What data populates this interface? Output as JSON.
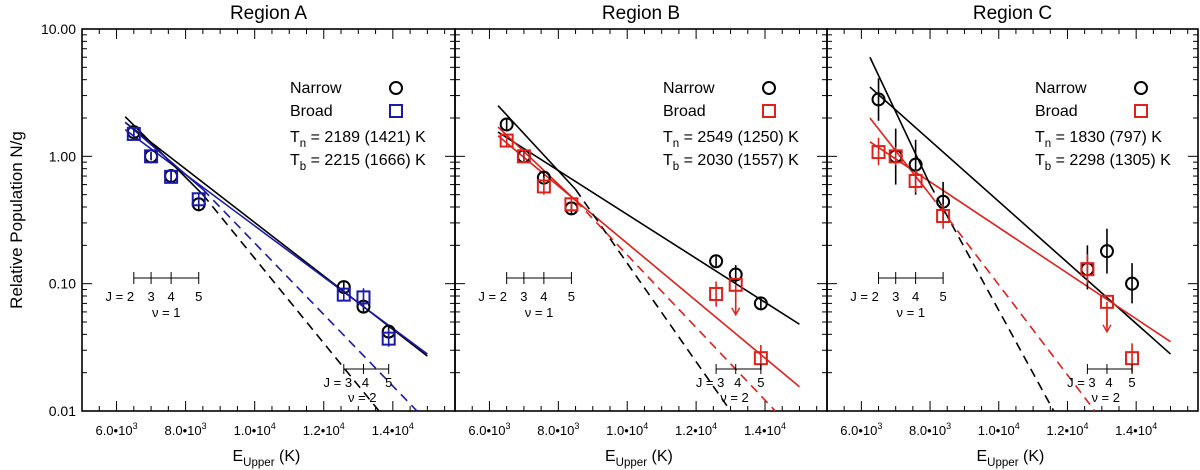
{
  "figure": {
    "ylabel": "Relative Population N/g",
    "xlabel_main": "E",
    "xlabel_sub": "Upper",
    "xlabel_unit": " (K)",
    "yticks": [
      {
        "value": 10,
        "label": "10.00"
      },
      {
        "value": 1,
        "label": "1.00"
      },
      {
        "value": 0.1,
        "label": "0.10"
      },
      {
        "value": 0.01,
        "label": "0.01"
      }
    ],
    "xticks": [
      {
        "value": 6000,
        "label": "6.0•10",
        "exp": "3"
      },
      {
        "value": 8000,
        "label": "8.0•10",
        "exp": "3"
      },
      {
        "value": 10000,
        "label": "1.0•10",
        "exp": "4"
      },
      {
        "value": 12000,
        "label": "1.2•10",
        "exp": "4"
      },
      {
        "value": 14000,
        "label": "1.4•10",
        "exp": "4"
      }
    ],
    "xlim": [
      5000,
      15800
    ],
    "ylim": [
      0.01,
      10
    ]
  },
  "chart_data": [
    {
      "type": "scatter",
      "title": "Region A",
      "broad_color": "#1a1aaa",
      "legend": {
        "narrow": "Narrow",
        "broad": "Broad",
        "tn_prefix": "T",
        "tn_sub": "n",
        "tn_value": " = 2189 (1421) K",
        "tb_prefix": "T",
        "tb_sub": "b",
        "tb_value": " = 2215 (1666) K"
      },
      "v1": {
        "labels": [
          "J = 2",
          "3",
          "4",
          "5"
        ],
        "nu": "ν = 1"
      },
      "v2": {
        "labels": [
          "J = 3",
          "4",
          "5"
        ],
        "nu": "ν = 2"
      },
      "narrow": [
        {
          "x": 6500,
          "y": 1.55,
          "lo": 1.4,
          "hi": 1.72
        },
        {
          "x": 7000,
          "y": 1.0,
          "lo": 0.93,
          "hi": 1.08
        },
        {
          "x": 7580,
          "y": 0.7,
          "lo": 0.64,
          "hi": 0.77
        },
        {
          "x": 8380,
          "y": 0.42,
          "lo": 0.37,
          "hi": 0.48
        },
        {
          "x": 12580,
          "y": 0.094,
          "lo": 0.085,
          "hi": 0.104
        },
        {
          "x": 13150,
          "y": 0.066,
          "lo": 0.059,
          "hi": 0.073
        },
        {
          "x": 13880,
          "y": 0.042,
          "lo": 0.037,
          "hi": 0.047
        }
      ],
      "broad": [
        {
          "x": 6500,
          "y": 1.5,
          "lo": 1.38,
          "hi": 1.62
        },
        {
          "x": 7000,
          "y": 1.0,
          "lo": 0.94,
          "hi": 1.06
        },
        {
          "x": 7580,
          "y": 0.69,
          "lo": 0.64,
          "hi": 0.75
        },
        {
          "x": 8380,
          "y": 0.46,
          "lo": 0.41,
          "hi": 0.52
        },
        {
          "x": 12580,
          "y": 0.082,
          "lo": 0.074,
          "hi": 0.091
        },
        {
          "x": 13150,
          "y": 0.078,
          "lo": 0.065,
          "hi": 0.092
        },
        {
          "x": 13880,
          "y": 0.037,
          "lo": 0.032,
          "hi": 0.044
        }
      ],
      "lines": [
        {
          "kind": "narrow",
          "dash": false,
          "x0": 6250,
          "y0": 1.85,
          "x1": 15000,
          "y1": 0.027
        },
        {
          "kind": "broad",
          "dash": false,
          "x0": 6250,
          "y0": 1.62,
          "x1": 15000,
          "y1": 0.028
        },
        {
          "kind": "narrow",
          "dash": false,
          "x0": 6250,
          "y0": 2.05,
          "x1": 8500,
          "y1": 0.5
        },
        {
          "kind": "narrow",
          "dash": true,
          "x0": 8500,
          "y0": 0.5,
          "x1": 13600,
          "y1": 0.01
        },
        {
          "kind": "broad",
          "dash": false,
          "x0": 6250,
          "y0": 1.85,
          "x1": 8500,
          "y1": 0.55
        },
        {
          "kind": "broad",
          "dash": true,
          "x0": 8500,
          "y0": 0.55,
          "x1": 14700,
          "y1": 0.01
        }
      ]
    },
    {
      "type": "scatter",
      "title": "Region B",
      "broad_color": "#e0201a",
      "legend": {
        "narrow": "Narrow",
        "broad": "Broad",
        "tn_prefix": "T",
        "tn_sub": "n",
        "tn_value": " = 2549 (1250) K",
        "tb_prefix": "T",
        "tb_sub": "b",
        "tb_value": " = 2030 (1557) K"
      },
      "v1": {
        "labels": [
          "J = 2",
          "3",
          "4",
          "5"
        ],
        "nu": "ν = 1"
      },
      "v2": {
        "labels": [
          "J = 3",
          "4",
          "5"
        ],
        "nu": "ν = 2"
      },
      "narrow": [
        {
          "x": 6500,
          "y": 1.78,
          "lo": 1.6,
          "hi": 1.98
        },
        {
          "x": 7000,
          "y": 1.0,
          "lo": 0.92,
          "hi": 1.09
        },
        {
          "x": 7580,
          "y": 0.68,
          "lo": 0.61,
          "hi": 0.76
        },
        {
          "x": 8380,
          "y": 0.39,
          "lo": 0.35,
          "hi": 0.44
        },
        {
          "x": 12580,
          "y": 0.15,
          "lo": 0.137,
          "hi": 0.164
        },
        {
          "x": 13150,
          "y": 0.118,
          "lo": 0.1,
          "hi": 0.14
        },
        {
          "x": 13880,
          "y": 0.07,
          "lo": 0.064,
          "hi": 0.077
        }
      ],
      "broad": [
        {
          "x": 6500,
          "y": 1.33,
          "lo": 1.2,
          "hi": 1.47
        },
        {
          "x": 7000,
          "y": 1.0,
          "lo": 0.93,
          "hi": 1.08
        },
        {
          "x": 7580,
          "y": 0.58,
          "lo": 0.5,
          "hi": 0.68
        },
        {
          "x": 8380,
          "y": 0.42,
          "lo": 0.37,
          "hi": 0.48
        },
        {
          "x": 12580,
          "y": 0.083,
          "lo": 0.066,
          "hi": 0.104
        },
        {
          "x": 13150,
          "y": 0.098,
          "lo": 0.06,
          "hi": 0.098
        },
        {
          "x": 13880,
          "y": 0.026,
          "lo": 0.021,
          "hi": 0.033
        }
      ],
      "upper_limit_index": 5,
      "lines": [
        {
          "kind": "narrow",
          "dash": false,
          "x0": 6250,
          "y0": 1.55,
          "x1": 15000,
          "y1": 0.048
        },
        {
          "kind": "broad",
          "dash": false,
          "x0": 6250,
          "y0": 1.45,
          "x1": 15000,
          "y1": 0.0155
        },
        {
          "kind": "narrow",
          "dash": false,
          "x0": 6250,
          "y0": 2.5,
          "x1": 8500,
          "y1": 0.55
        },
        {
          "kind": "narrow",
          "dash": true,
          "x0": 8500,
          "y0": 0.55,
          "x1": 13000,
          "y1": 0.01
        },
        {
          "kind": "broad",
          "dash": false,
          "x0": 6250,
          "y0": 1.7,
          "x1": 8500,
          "y1": 0.45
        },
        {
          "kind": "broad",
          "dash": true,
          "x0": 8500,
          "y0": 0.45,
          "x1": 14300,
          "y1": 0.01
        }
      ]
    },
    {
      "type": "scatter",
      "title": "Region C",
      "broad_color": "#e0201a",
      "legend": {
        "narrow": "Narrow",
        "broad": "Broad",
        "tn_prefix": "T",
        "tn_sub": "n",
        "tn_value": " = 1830 (797) K",
        "tb_prefix": "T",
        "tb_sub": "b",
        "tb_value": " = 2298 (1305) K"
      },
      "v1": {
        "labels": [
          "J = 2",
          "3",
          "4",
          "5"
        ],
        "nu": "ν = 1"
      },
      "v2": {
        "labels": [
          "J = 3",
          "4",
          "5"
        ],
        "nu": "ν = 2"
      },
      "narrow": [
        {
          "x": 6500,
          "y": 2.8,
          "lo": 1.9,
          "hi": 4.1
        },
        {
          "x": 7000,
          "y": 1.0,
          "lo": 0.6,
          "hi": 1.65
        },
        {
          "x": 7580,
          "y": 0.86,
          "lo": 0.5,
          "hi": 1.35
        },
        {
          "x": 8380,
          "y": 0.44,
          "lo": 0.3,
          "hi": 0.63
        },
        {
          "x": 12580,
          "y": 0.13,
          "lo": 0.09,
          "hi": 0.2
        },
        {
          "x": 13150,
          "y": 0.18,
          "lo": 0.12,
          "hi": 0.27
        },
        {
          "x": 13880,
          "y": 0.1,
          "lo": 0.07,
          "hi": 0.145
        }
      ],
      "broad": [
        {
          "x": 6500,
          "y": 1.08,
          "lo": 0.85,
          "hi": 1.4
        },
        {
          "x": 7000,
          "y": 1.0,
          "lo": 0.85,
          "hi": 1.18
        },
        {
          "x": 7580,
          "y": 0.64,
          "lo": 0.52,
          "hi": 0.78
        },
        {
          "x": 8380,
          "y": 0.34,
          "lo": 0.27,
          "hi": 0.42
        },
        {
          "x": 12580,
          "y": 0.13,
          "lo": 0.1,
          "hi": 0.17
        },
        {
          "x": 13150,
          "y": 0.072,
          "lo": 0.045,
          "hi": 0.072
        },
        {
          "x": 13880,
          "y": 0.026,
          "lo": 0.02,
          "hi": 0.034
        }
      ],
      "upper_limit_index": 5,
      "lines": [
        {
          "kind": "narrow",
          "dash": false,
          "x0": 6250,
          "y0": 3.5,
          "x1": 15000,
          "y1": 0.028
        },
        {
          "kind": "broad",
          "dash": false,
          "x0": 6250,
          "y0": 1.3,
          "x1": 15000,
          "y1": 0.035
        },
        {
          "kind": "narrow",
          "dash": false,
          "x0": 6250,
          "y0": 6.0,
          "x1": 8000,
          "y1": 0.6
        },
        {
          "kind": "narrow",
          "dash": true,
          "x0": 8000,
          "y0": 0.6,
          "x1": 11600,
          "y1": 0.01
        },
        {
          "kind": "broad",
          "dash": false,
          "x0": 6250,
          "y0": 2.0,
          "x1": 8000,
          "y1": 0.5
        },
        {
          "kind": "broad",
          "dash": true,
          "x0": 8000,
          "y0": 0.5,
          "x1": 12800,
          "y1": 0.01
        }
      ]
    }
  ]
}
